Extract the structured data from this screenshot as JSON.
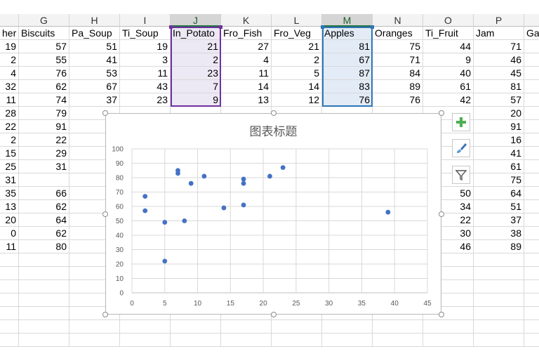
{
  "columns": [
    {
      "id": "F",
      "letter": "",
      "header": "her"
    },
    {
      "id": "G",
      "letter": "G",
      "header": "Biscuits"
    },
    {
      "id": "H",
      "letter": "H",
      "header": "Pa_Soup"
    },
    {
      "id": "I",
      "letter": "I",
      "header": "Ti_Soup"
    },
    {
      "id": "J",
      "letter": "J",
      "header": "In_Potato"
    },
    {
      "id": "K",
      "letter": "K",
      "header": "Fro_Fish"
    },
    {
      "id": "L",
      "letter": "L",
      "header": "Fro_Veg"
    },
    {
      "id": "M",
      "letter": "M",
      "header": "Apples"
    },
    {
      "id": "N",
      "letter": "N",
      "header": "Oranges"
    },
    {
      "id": "O",
      "letter": "O",
      "header": "Ti_Fruit"
    },
    {
      "id": "P",
      "letter": "P",
      "header": "Jam"
    },
    {
      "id": "Q",
      "letter": "",
      "header": "Ga"
    }
  ],
  "rows": [
    {
      "F": "19",
      "G": "57",
      "H": "51",
      "I": "19",
      "J": "21",
      "K": "27",
      "L": "21",
      "M": "81",
      "N": "75",
      "O": "44",
      "P": "71"
    },
    {
      "F": "2",
      "G": "55",
      "H": "41",
      "I": "3",
      "J": "2",
      "K": "4",
      "L": "2",
      "M": "67",
      "N": "71",
      "O": "9",
      "P": "46"
    },
    {
      "F": "4",
      "G": "76",
      "H": "53",
      "I": "11",
      "J": "23",
      "K": "11",
      "L": "5",
      "M": "87",
      "N": "84",
      "O": "40",
      "P": "45"
    },
    {
      "F": "32",
      "G": "62",
      "H": "67",
      "I": "43",
      "J": "7",
      "K": "14",
      "L": "14",
      "M": "83",
      "N": "89",
      "O": "61",
      "P": "81"
    },
    {
      "F": "11",
      "G": "74",
      "H": "37",
      "I": "23",
      "J": "9",
      "K": "13",
      "L": "12",
      "M": "76",
      "N": "76",
      "O": "42",
      "P": "57"
    },
    {
      "F": "28",
      "G": "79",
      "H": "",
      "I": "",
      "J": "",
      "K": "",
      "L": "",
      "M": "",
      "N": "",
      "O": "",
      "P": "20"
    },
    {
      "F": "22",
      "G": "91",
      "H": "",
      "I": "",
      "J": "",
      "K": "",
      "L": "",
      "M": "",
      "N": "",
      "O": "",
      "P": "91"
    },
    {
      "F": "2",
      "G": "22",
      "H": "",
      "I": "",
      "J": "",
      "K": "",
      "L": "",
      "M": "",
      "N": "",
      "O": "",
      "P": "16"
    },
    {
      "F": "15",
      "G": "29",
      "H": "",
      "I": "",
      "J": "",
      "K": "",
      "L": "",
      "M": "",
      "N": "",
      "O": "",
      "P": "41"
    },
    {
      "F": "25",
      "G": "31",
      "H": "",
      "I": "",
      "J": "",
      "K": "",
      "L": "",
      "M": "",
      "N": "",
      "O": "",
      "P": "61"
    },
    {
      "F": "31",
      "G": "",
      "H": "",
      "I": "",
      "J": "",
      "K": "",
      "L": "",
      "M": "",
      "N": "",
      "O": "",
      "P": "75"
    },
    {
      "F": "35",
      "G": "66",
      "H": "",
      "I": "",
      "J": "",
      "K": "",
      "L": "",
      "M": "",
      "N": "",
      "O": "50",
      "P": "64"
    },
    {
      "F": "13",
      "G": "62",
      "H": "",
      "I": "",
      "J": "",
      "K": "",
      "L": "",
      "M": "",
      "N": "",
      "O": "34",
      "P": "51"
    },
    {
      "F": "20",
      "G": "64",
      "H": "",
      "I": "",
      "J": "",
      "K": "",
      "L": "",
      "M": "",
      "N": "",
      "O": "22",
      "P": "37"
    },
    {
      "F": "0",
      "G": "62",
      "H": "",
      "I": "",
      "J": "",
      "K": "",
      "L": "",
      "M": "",
      "N": "",
      "O": "30",
      "P": "38"
    },
    {
      "F": "11",
      "G": "80",
      "H": "",
      "I": "",
      "J": "",
      "K": "",
      "L": "",
      "M": "",
      "N": "",
      "O": "46",
      "P": "89"
    }
  ],
  "colors": {
    "selected_j": "#7030a0",
    "selected_m": "#2e75b6",
    "point": "#4472c4",
    "gridline": "#d9d9d9",
    "add_icon": "#4caf50"
  },
  "chart_data": {
    "type": "scatter",
    "title": "图表标题",
    "xlabel": "",
    "ylabel": "",
    "xlim": [
      0,
      45
    ],
    "ylim": [
      0,
      100
    ],
    "xticks": [
      0,
      5,
      10,
      15,
      20,
      25,
      30,
      35,
      40,
      45
    ],
    "yticks": [
      0,
      10,
      20,
      30,
      40,
      50,
      60,
      70,
      80,
      90,
      100
    ],
    "grid": true,
    "series": [
      {
        "points": [
          [
            2,
            67
          ],
          [
            2,
            57
          ],
          [
            5,
            49
          ],
          [
            5,
            22
          ],
          [
            7,
            85
          ],
          [
            7,
            83
          ],
          [
            8,
            50
          ],
          [
            9,
            76
          ],
          [
            11,
            81
          ],
          [
            14,
            59
          ],
          [
            17,
            79
          ],
          [
            17,
            76
          ],
          [
            17,
            61
          ],
          [
            21,
            81
          ],
          [
            23,
            87
          ],
          [
            39,
            56
          ]
        ]
      }
    ]
  },
  "side_buttons": [
    {
      "icon": "plus-icon",
      "name": "chart-elements-button"
    },
    {
      "icon": "brush-icon",
      "name": "chart-styles-button"
    },
    {
      "icon": "filter-icon",
      "name": "chart-filters-button"
    }
  ]
}
